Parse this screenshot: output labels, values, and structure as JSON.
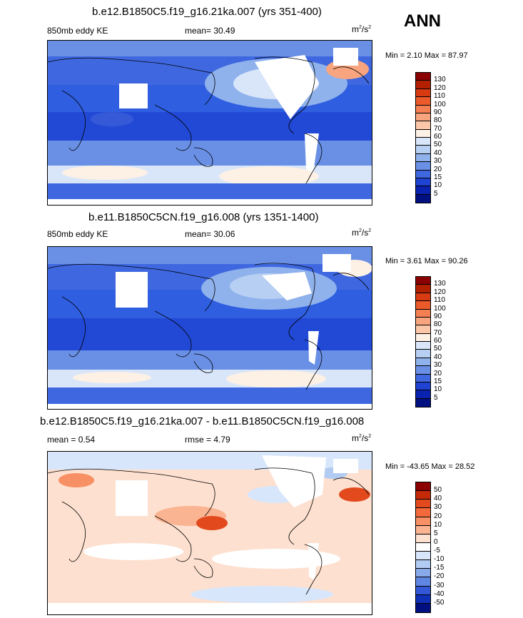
{
  "season": "ANN",
  "panels": [
    {
      "title": "b.e12.B1850C5.f19_g16.21ka.007 (yrs 351-400)",
      "left_label": "850mb eddy KE",
      "center_label": "mean=  30.49",
      "units_main": "m",
      "units_sup1": "2",
      "units_mid": "/s",
      "units_sup2": "2",
      "minmax": "Min =  2.10 Max =  87.97",
      "levels": [
        "130",
        "120",
        "110",
        "100",
        "90",
        "80",
        "70",
        "60",
        "50",
        "40",
        "30",
        "20",
        "15",
        "10",
        "5"
      ],
      "colors": [
        "#8b0000",
        "#b22000",
        "#d83a12",
        "#ea5a2a",
        "#f47f52",
        "#f8a57f",
        "#fbc7a8",
        "#fdf0e4",
        "#d9e6fa",
        "#b6cff3",
        "#8fb1ec",
        "#6a90e6",
        "#3f68e0",
        "#1f43d2",
        "#0a22b0",
        "#001080"
      ]
    },
    {
      "title": "b.e11.B1850C5CN.f19_g16.008 (yrs 1351-1400)",
      "left_label": "850mb eddy KE",
      "center_label": "mean=  30.06",
      "units_main": "m",
      "units_sup1": "2",
      "units_mid": "/s",
      "units_sup2": "2",
      "minmax": "Min =  3.61 Max =  90.26",
      "levels": [
        "130",
        "120",
        "110",
        "100",
        "90",
        "80",
        "70",
        "60",
        "50",
        "40",
        "30",
        "20",
        "15",
        "10",
        "5"
      ],
      "colors": [
        "#8b0000",
        "#b22000",
        "#d83a12",
        "#ea5a2a",
        "#f47f52",
        "#f8a57f",
        "#fbc7a8",
        "#fdf0e4",
        "#d9e6fa",
        "#b6cff3",
        "#8fb1ec",
        "#6a90e6",
        "#3f68e0",
        "#1f43d2",
        "#0a22b0",
        "#001080"
      ]
    },
    {
      "title": "b.e12.B1850C5.f19_g16.21ka.007 - b.e11.B1850C5CN.f19_g16.008",
      "left_label": "mean =   0.54",
      "center_label": "rmse =   4.79",
      "units_main": "m",
      "units_sup1": "2",
      "units_mid": "/s",
      "units_sup2": "2",
      "minmax": "Min = -43.65 Max =  28.52",
      "levels": [
        "50",
        "40",
        "30",
        "20",
        "10",
        "5",
        "0",
        "-5",
        "-10",
        "-15",
        "-20",
        "-30",
        "-40",
        "-50"
      ],
      "colors": [
        "#8b0000",
        "#c42a08",
        "#e24a1e",
        "#f26a3c",
        "#f79064",
        "#fab492",
        "#fde0cf",
        "#ffffff",
        "#d8e6fb",
        "#b2cbf2",
        "#88a9ea",
        "#5f86e2",
        "#3258d8",
        "#1030b8",
        "#001080"
      ]
    }
  ]
}
